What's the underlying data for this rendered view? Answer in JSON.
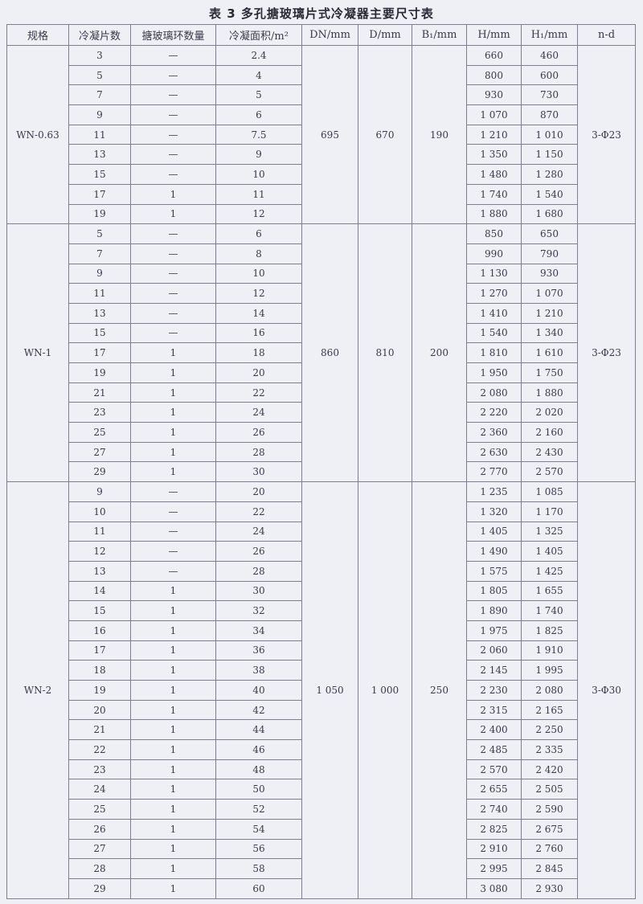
{
  "title": "表 3   多孔搪玻璃片式冷凝器主要尺寸表",
  "headers": [
    "规格",
    "冷凝片数",
    "搪玻璃环数量",
    "冷凝面积/m²",
    "DN/mm",
    "D/mm",
    "B₁/mm",
    "H/mm",
    "H₁/mm",
    "n-d"
  ],
  "groups": [
    {
      "spec": "WN-0.63",
      "DN": "695",
      "D": "670",
      "B1": "190",
      "nd": "3-Φ23",
      "rows": [
        [
          "3",
          "—",
          "2.4",
          "660",
          "460"
        ],
        [
          "5",
          "—",
          "4",
          "800",
          "600"
        ],
        [
          "7",
          "—",
          "5",
          "930",
          "730"
        ],
        [
          "9",
          "—",
          "6",
          "1 070",
          "870"
        ],
        [
          "11",
          "—",
          "7.5",
          "1 210",
          "1 010"
        ],
        [
          "13",
          "—",
          "9",
          "1 350",
          "1 150"
        ],
        [
          "15",
          "—",
          "10",
          "1 480",
          "1 280"
        ],
        [
          "17",
          "1",
          "11",
          "1 740",
          "1 540"
        ],
        [
          "19",
          "1",
          "12",
          "1 880",
          "1 680"
        ]
      ]
    },
    {
      "spec": "WN-1",
      "DN": "860",
      "D": "810",
      "B1": "200",
      "nd": "3-Φ23",
      "rows": [
        [
          "5",
          "—",
          "6",
          "850",
          "650"
        ],
        [
          "7",
          "—",
          "8",
          "990",
          "790"
        ],
        [
          "9",
          "—",
          "10",
          "1 130",
          "930"
        ],
        [
          "11",
          "—",
          "12",
          "1 270",
          "1 070"
        ],
        [
          "13",
          "—",
          "14",
          "1 410",
          "1 210"
        ],
        [
          "15",
          "—",
          "16",
          "1 540",
          "1 340"
        ],
        [
          "17",
          "1",
          "18",
          "1 810",
          "1 610"
        ],
        [
          "19",
          "1",
          "20",
          "1 950",
          "1 750"
        ],
        [
          "21",
          "1",
          "22",
          "2 080",
          "1 880"
        ],
        [
          "23",
          "1",
          "24",
          "2 220",
          "2 020"
        ],
        [
          "25",
          "1",
          "26",
          "2 360",
          "2 160"
        ],
        [
          "27",
          "1",
          "28",
          "2 630",
          "2 430"
        ],
        [
          "29",
          "1",
          "30",
          "2 770",
          "2 570"
        ]
      ]
    },
    {
      "spec": "WN-2",
      "DN": "1 050",
      "D": "1 000",
      "B1": "250",
      "nd": "3-Φ30",
      "rows": [
        [
          "9",
          "—",
          "20",
          "1 235",
          "1 085"
        ],
        [
          "10",
          "—",
          "22",
          "1 320",
          "1 170"
        ],
        [
          "11",
          "—",
          "24",
          "1 405",
          "1 325"
        ],
        [
          "12",
          "—",
          "26",
          "1 490",
          "1 405"
        ],
        [
          "13",
          "—",
          "28",
          "1 575",
          "1 425"
        ],
        [
          "14",
          "1",
          "30",
          "1 805",
          "1 655"
        ],
        [
          "15",
          "1",
          "32",
          "1 890",
          "1 740"
        ],
        [
          "16",
          "1",
          "34",
          "1 975",
          "1 825"
        ],
        [
          "17",
          "1",
          "36",
          "2 060",
          "1 910"
        ],
        [
          "18",
          "1",
          "38",
          "2 145",
          "1 995"
        ],
        [
          "19",
          "1",
          "40",
          "2 230",
          "2 080"
        ],
        [
          "20",
          "1",
          "42",
          "2 315",
          "2 165"
        ],
        [
          "21",
          "1",
          "44",
          "2 400",
          "2 250"
        ],
        [
          "22",
          "1",
          "46",
          "2 485",
          "2 335"
        ],
        [
          "23",
          "1",
          "48",
          "2 570",
          "2 420"
        ],
        [
          "24",
          "1",
          "50",
          "2 655",
          "2 505"
        ],
        [
          "25",
          "1",
          "52",
          "2 740",
          "2 590"
        ],
        [
          "26",
          "1",
          "54",
          "2 825",
          "2 675"
        ],
        [
          "27",
          "1",
          "56",
          "2 910",
          "2 760"
        ],
        [
          "28",
          "1",
          "58",
          "2 995",
          "2 845"
        ],
        [
          "29",
          "1",
          "60",
          "3 080",
          "2 930"
        ]
      ]
    }
  ]
}
